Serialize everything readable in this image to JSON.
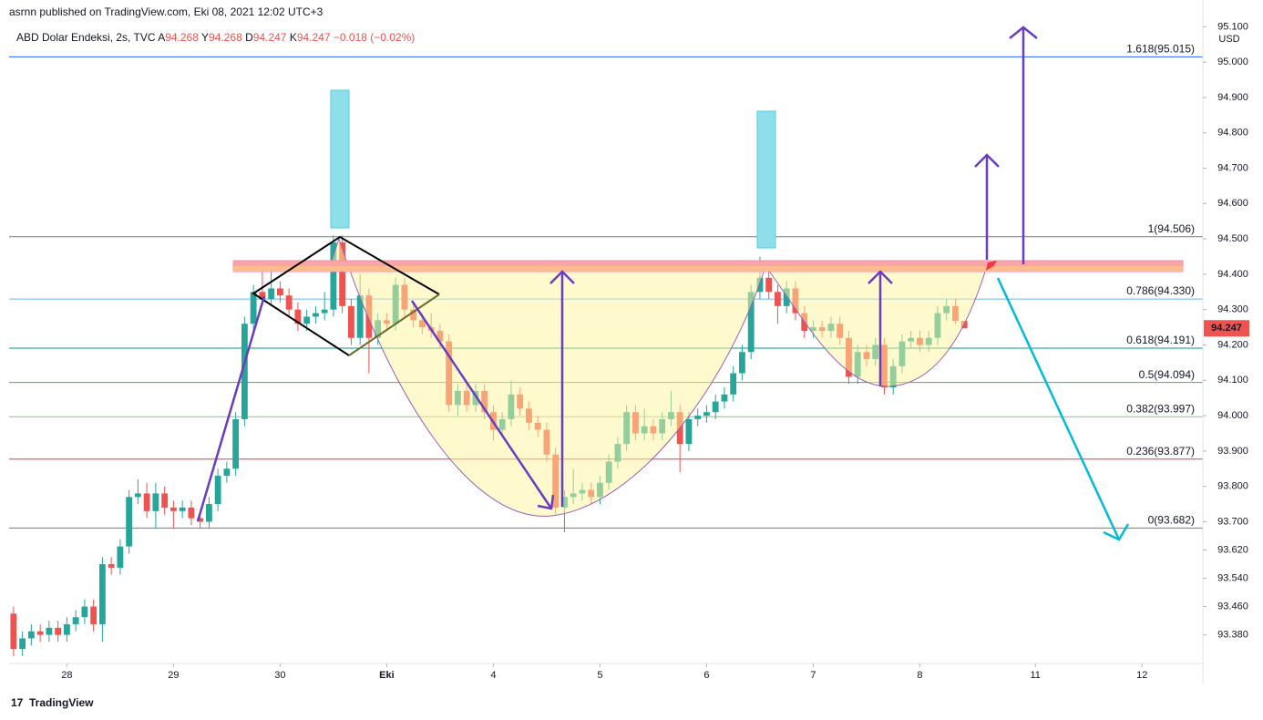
{
  "published": "asrnn published on TradingView.com, Eki 08, 2021 12:02 UTC+3",
  "footer_brand": "TradingView",
  "chart_data": {
    "type": "candlestick",
    "title": "ABD Dolar Endeksi, 2s, TVC",
    "ohlc_labels": [
      "A",
      "Y",
      "D",
      "K"
    ],
    "change": "−0.018 (−0.02%)",
    "currency": "USD",
    "up_color": "#26a69a",
    "down_color": "#ef5350",
    "open": [
      93.44,
      93.34,
      93.37,
      93.39,
      93.38,
      93.4,
      93.38,
      93.41,
      93.43,
      93.46,
      93.41,
      93.58,
      93.57,
      93.63,
      93.77,
      93.78,
      93.73,
      93.78,
      93.74,
      93.73,
      93.74,
      93.71,
      93.7,
      93.75,
      93.83,
      93.85,
      93.99,
      94.26,
      94.35,
      94.33,
      94.36,
      94.34,
      94.3,
      94.26,
      94.28,
      94.29,
      94.3,
      94.49,
      94.31,
      94.22,
      94.34,
      94.22,
      94.27,
      94.26,
      94.37,
      94.3,
      94.27,
      94.25,
      94.24,
      94.21,
      94.03,
      94.07,
      94.03,
      94.07,
      94.01,
      93.96,
      93.99,
      94.06,
      94.02,
      93.98,
      93.96,
      93.89,
      93.74,
      93.77,
      93.78,
      93.79,
      93.77,
      93.81,
      93.87,
      93.92,
      94.01,
      93.95,
      93.97,
      93.95,
      93.99,
      94.01,
      93.92,
      93.99,
      94.0,
      94.01,
      94.04,
      94.06,
      94.12,
      94.18,
      94.35,
      94.39,
      94.35,
      94.31,
      94.36,
      94.29,
      94.24,
      94.25,
      94.24,
      94.26,
      94.22,
      94.11,
      94.18,
      94.16,
      94.2,
      94.08,
      94.14,
      94.21,
      94.22,
      94.2,
      94.22,
      94.29,
      94.31,
      94.268
    ],
    "high": [
      93.46,
      93.39,
      93.41,
      93.41,
      93.42,
      93.42,
      93.43,
      93.45,
      93.48,
      93.48,
      93.6,
      93.6,
      93.65,
      93.79,
      93.82,
      93.81,
      93.81,
      93.8,
      93.76,
      93.76,
      93.76,
      93.73,
      93.77,
      93.85,
      93.87,
      94.01,
      94.28,
      94.37,
      94.43,
      94.42,
      94.38,
      94.36,
      94.32,
      94.3,
      94.31,
      94.35,
      94.51,
      94.51,
      94.33,
      94.4,
      94.36,
      94.29,
      94.29,
      94.39,
      94.39,
      94.32,
      94.29,
      94.29,
      94.26,
      94.23,
      94.09,
      94.09,
      94.09,
      94.09,
      94.03,
      94.01,
      94.1,
      94.08,
      94.04,
      94.0,
      93.98,
      93.91,
      93.79,
      93.85,
      93.81,
      93.81,
      93.83,
      93.89,
      93.94,
      94.03,
      94.03,
      94.02,
      93.99,
      94.01,
      94.07,
      94.03,
      94.01,
      94.02,
      94.03,
      94.06,
      94.08,
      94.14,
      94.2,
      94.37,
      94.45,
      94.41,
      94.37,
      94.38,
      94.38,
      94.31,
      94.27,
      94.27,
      94.28,
      94.28,
      94.24,
      94.2,
      94.2,
      94.22,
      94.22,
      94.16,
      94.23,
      94.24,
      94.24,
      94.24,
      94.31,
      94.33,
      94.33,
      94.268
    ],
    "low": [
      93.32,
      93.32,
      93.35,
      93.36,
      93.36,
      93.36,
      93.36,
      93.39,
      93.41,
      93.39,
      93.36,
      93.55,
      93.55,
      93.61,
      93.75,
      93.71,
      93.68,
      93.72,
      93.68,
      93.71,
      93.69,
      93.68,
      93.68,
      93.73,
      93.81,
      93.83,
      93.97,
      94.24,
      94.31,
      94.31,
      94.32,
      94.28,
      94.24,
      94.24,
      94.26,
      94.27,
      94.28,
      94.29,
      94.2,
      94.2,
      94.12,
      94.2,
      94.24,
      94.24,
      94.28,
      94.25,
      94.23,
      94.22,
      94.19,
      94.01,
      94.0,
      94.01,
      94.01,
      93.99,
      93.93,
      93.94,
      93.97,
      94.0,
      93.96,
      93.94,
      93.87,
      93.72,
      93.67,
      93.75,
      93.76,
      93.75,
      93.75,
      93.79,
      93.85,
      93.9,
      93.93,
      93.93,
      93.93,
      93.93,
      93.97,
      93.84,
      93.9,
      93.97,
      93.98,
      93.99,
      94.02,
      94.04,
      94.1,
      94.16,
      94.33,
      94.33,
      94.26,
      94.29,
      94.27,
      94.22,
      94.22,
      94.22,
      94.22,
      94.2,
      94.09,
      94.09,
      94.14,
      94.14,
      94.06,
      94.06,
      94.12,
      94.19,
      94.18,
      94.18,
      94.2,
      94.27,
      94.26,
      94.247
    ],
    "close": [
      93.34,
      93.37,
      93.39,
      93.38,
      93.4,
      93.38,
      93.41,
      93.43,
      93.46,
      93.41,
      93.58,
      93.57,
      93.63,
      93.77,
      93.78,
      93.73,
      93.78,
      93.74,
      93.73,
      93.74,
      93.71,
      93.7,
      93.75,
      93.83,
      93.85,
      93.99,
      94.26,
      94.35,
      94.33,
      94.36,
      94.34,
      94.3,
      94.26,
      94.28,
      94.29,
      94.3,
      94.49,
      94.31,
      94.22,
      94.34,
      94.22,
      94.27,
      94.26,
      94.37,
      94.3,
      94.27,
      94.25,
      94.24,
      94.21,
      94.03,
      94.07,
      94.03,
      94.07,
      94.01,
      93.96,
      93.99,
      94.06,
      94.02,
      93.98,
      93.96,
      93.89,
      93.74,
      93.77,
      93.78,
      93.79,
      93.77,
      93.81,
      93.87,
      93.92,
      94.01,
      93.95,
      93.97,
      93.95,
      93.99,
      94.01,
      93.92,
      93.99,
      94.0,
      94.01,
      94.04,
      94.06,
      94.12,
      94.18,
      94.35,
      94.39,
      94.35,
      94.31,
      94.36,
      94.29,
      94.24,
      94.25,
      94.24,
      94.26,
      94.22,
      94.11,
      94.18,
      94.16,
      94.2,
      94.08,
      94.14,
      94.21,
      94.22,
      94.2,
      94.22,
      94.29,
      94.31,
      94.268,
      94.247
    ],
    "xlim": [
      -0.5,
      133.85
    ],
    "xticks": [
      {
        "value": 6,
        "label": "28"
      },
      {
        "value": 18,
        "label": "29"
      },
      {
        "value": 30,
        "label": "30"
      },
      {
        "value": 42,
        "label": "Eki"
      },
      {
        "value": 54,
        "label": "4"
      },
      {
        "value": 66,
        "label": "5"
      },
      {
        "value": 78,
        "label": "6"
      },
      {
        "value": 90,
        "label": "7"
      },
      {
        "value": 102,
        "label": "8"
      },
      {
        "value": 115,
        "label": "11"
      },
      {
        "value": 127,
        "label": "12"
      }
    ],
    "ylim": [
      93.299,
      95.119
    ],
    "yticks": [
      {
        "value": 95.1,
        "label": "95.100"
      },
      {
        "value": 95,
        "label": "95.000"
      },
      {
        "value": 94.9,
        "label": "94.900"
      },
      {
        "value": 94.8,
        "label": "94.800"
      },
      {
        "value": 94.7,
        "label": "94.700"
      },
      {
        "value": 94.6,
        "label": "94.600"
      },
      {
        "value": 94.5,
        "label": "94.500"
      },
      {
        "value": 94.4,
        "label": "94.400"
      },
      {
        "value": 94.3,
        "label": "94.300"
      },
      {
        "value": 94.2,
        "label": "94.200"
      },
      {
        "value": 94.1,
        "label": "94.100"
      },
      {
        "value": 94,
        "label": "94.000"
      },
      {
        "value": 93.9,
        "label": "93.900"
      },
      {
        "value": 93.8,
        "label": "93.800"
      },
      {
        "value": 93.7,
        "label": "93.700"
      },
      {
        "value": 93.62,
        "label": "93.620"
      },
      {
        "value": 93.54,
        "label": "93.540"
      },
      {
        "value": 93.46,
        "label": "93.460"
      },
      {
        "value": 93.38,
        "label": "93.380"
      }
    ],
    "fib_levels": [
      {
        "label": "1.618(95.015)",
        "value": 95.015,
        "color": "#2962ff"
      },
      {
        "label": "1(94.506)",
        "value": 94.506,
        "color": "#787b86"
      },
      {
        "label": "0.786(94.330)",
        "value": 94.33,
        "color": "#64b5f6"
      },
      {
        "label": "0.618(94.191)",
        "value": 94.191,
        "color": "#089981"
      },
      {
        "label": "0.5(94.094)",
        "value": 94.094,
        "color": "#4caf50"
      },
      {
        "label": "0.382(93.997)",
        "value": 93.997,
        "color": "#81c784"
      },
      {
        "label": "0.236(93.877)",
        "value": 93.877,
        "color": "#f23645"
      },
      {
        "label": "0(93.682)",
        "value": 93.682,
        "color": "#787b86"
      }
    ]
  }
}
